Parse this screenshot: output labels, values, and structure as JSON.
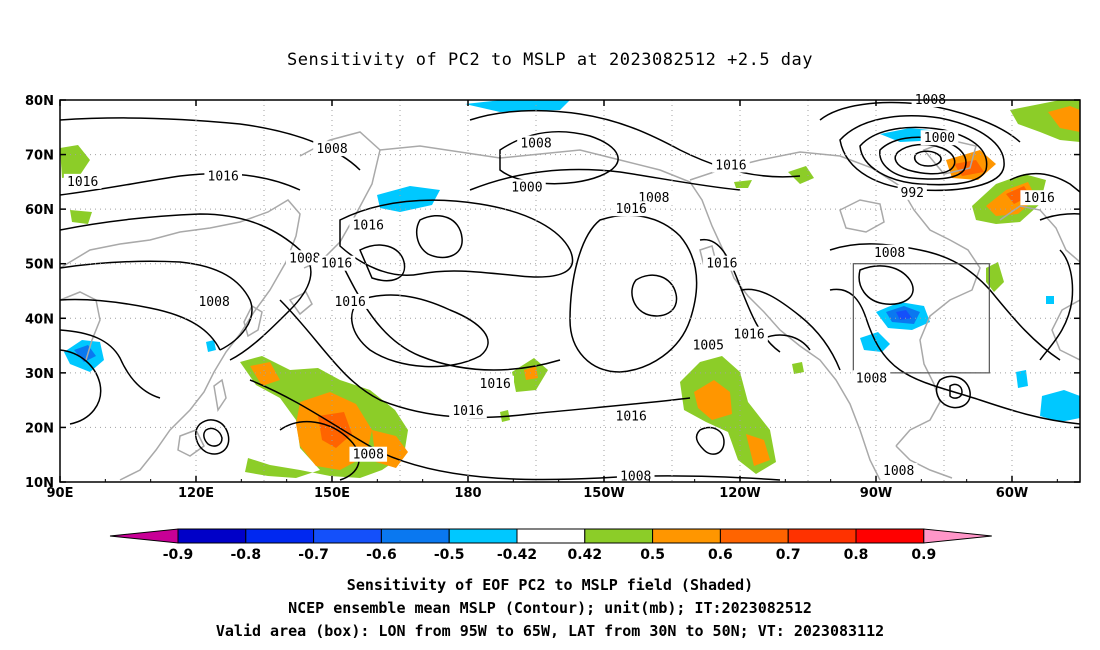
{
  "title": "Sensitivity of PC2 to MSLP at 2023082512 +2.5 day",
  "lat_labels": [
    "80N",
    "70N",
    "60N",
    "50N",
    "40N",
    "30N",
    "20N",
    "10N"
  ],
  "lon_labels": [
    "90E",
    "120E",
    "150E",
    "180",
    "150W",
    "120W",
    "90W",
    "60W"
  ],
  "contour_labels": [
    {
      "text": "1008",
      "lon": 150,
      "lat": 71
    },
    {
      "text": "1016",
      "lon": 95,
      "lat": 65
    },
    {
      "text": "1016",
      "lon": 126,
      "lat": 66
    },
    {
      "text": "1008",
      "lon": 195,
      "lat": 72
    },
    {
      "text": "1000",
      "lon": 193,
      "lat": 64
    },
    {
      "text": "1008",
      "lon": 221,
      "lat": 62
    },
    {
      "text": "1016",
      "lon": 216,
      "lat": 60
    },
    {
      "text": "1016",
      "lon": 238,
      "lat": 68
    },
    {
      "text": "1008",
      "lon": 282,
      "lat": 80
    },
    {
      "text": "1000",
      "lon": 284,
      "lat": 73
    },
    {
      "text": "992",
      "lon": 278,
      "lat": 63
    },
    {
      "text": "1016",
      "lon": 306,
      "lat": 62
    },
    {
      "text": "1008",
      "lon": 144,
      "lat": 51
    },
    {
      "text": "1016",
      "lon": 158,
      "lat": 57
    },
    {
      "text": "1016",
      "lon": 151,
      "lat": 50
    },
    {
      "text": "1008",
      "lon": 124,
      "lat": 43
    },
    {
      "text": "1016",
      "lon": 154,
      "lat": 43
    },
    {
      "text": "1016",
      "lon": 236,
      "lat": 50
    },
    {
      "text": "1008",
      "lon": 273,
      "lat": 52
    },
    {
      "text": "1005",
      "lon": 233,
      "lat": 35
    },
    {
      "text": "1016",
      "lon": 242,
      "lat": 37
    },
    {
      "text": "1016",
      "lon": 186,
      "lat": 28
    },
    {
      "text": "1016",
      "lon": 180,
      "lat": 23
    },
    {
      "text": "1016",
      "lon": 216,
      "lat": 22
    },
    {
      "text": "1008",
      "lon": 269,
      "lat": 29
    },
    {
      "text": "1008",
      "lon": 158,
      "lat": 15
    },
    {
      "text": "1008",
      "lon": 217,
      "lat": 11
    },
    {
      "text": "1008",
      "lon": 275,
      "lat": 12
    }
  ],
  "valid_box": {
    "lon_min": 265,
    "lon_max": 295,
    "lat_min": 30,
    "lat_max": 50
  },
  "colorbar": {
    "labels": [
      "-0.9",
      "-0.8",
      "-0.7",
      "-0.6",
      "-0.5",
      "-0.42",
      "0.42",
      "0.5",
      "0.6",
      "0.7",
      "0.8",
      "0.9"
    ],
    "colors": [
      "#0000c8",
      "#0028f0",
      "#1450fa",
      "#0a78f0",
      "#00c8ff",
      "#ffffff",
      "#8ccd28",
      "#ff9600",
      "#ff6400",
      "#ff3200",
      "#ff0000"
    ],
    "end_low": "#c80096",
    "end_high": "#ff96c8"
  },
  "caption_lines": [
    "Sensitivity of EOF PC2 to MSLP field (Shaded)",
    "NCEP ensemble mean MSLP (Contour); unit(mb); IT:2023082512",
    "Valid area (box): LON from 95W to 65W, LAT from 30N to 50N; VT: 2023083112"
  ]
}
